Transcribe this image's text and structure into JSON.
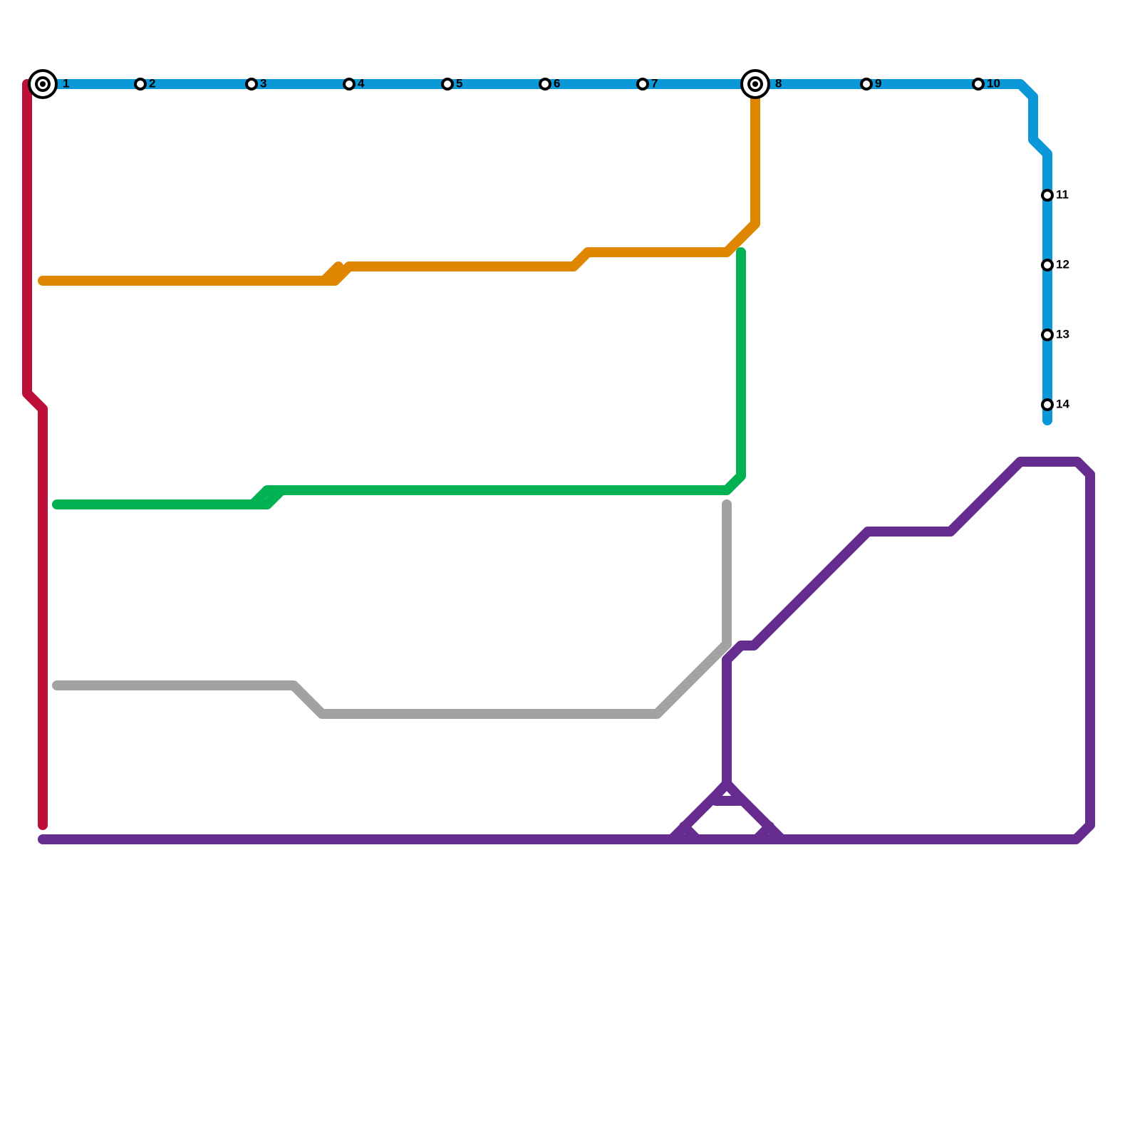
{
  "stations": [
    {
      "label": "1"
    },
    {
      "label": "2"
    },
    {
      "label": "3"
    },
    {
      "label": "4"
    },
    {
      "label": "5"
    },
    {
      "label": "6"
    },
    {
      "label": "7"
    },
    {
      "label": "8"
    },
    {
      "label": "9"
    },
    {
      "label": "10"
    },
    {
      "label": "11"
    },
    {
      "label": "12"
    },
    {
      "label": "13"
    },
    {
      "label": "14"
    }
  ]
}
